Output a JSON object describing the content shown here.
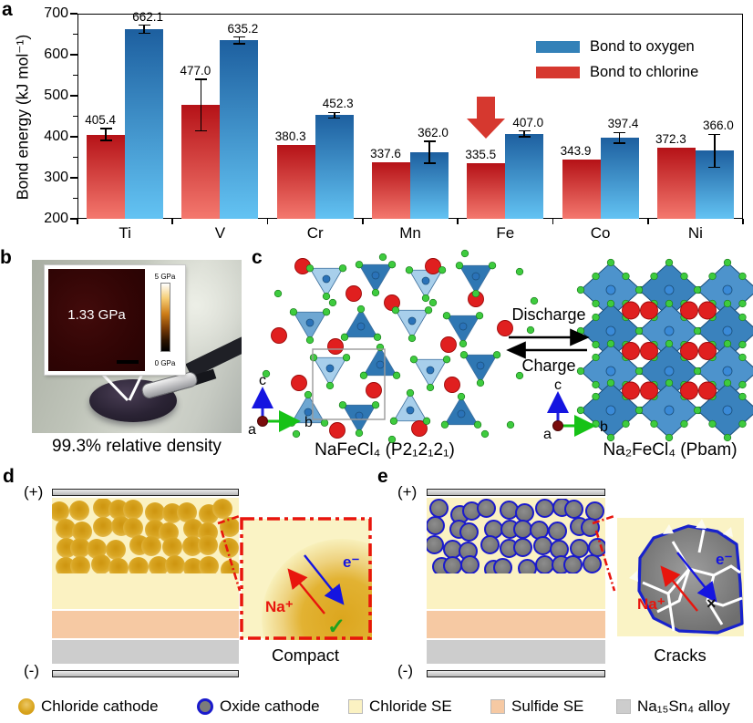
{
  "figure": {
    "panel_a_label": "a",
    "panel_b_label": "b",
    "panel_c_label": "c",
    "panel_d_label": "d",
    "panel_e_label": "e"
  },
  "chart_data": {
    "type": "bar",
    "title": "",
    "xlabel": "",
    "ylabel": "Bond energy (kJ mol⁻¹)",
    "ylim": [
      200,
      700
    ],
    "yticks": [
      200,
      300,
      400,
      500,
      600,
      700
    ],
    "grid": false,
    "legend_position": "top-right",
    "legend_order": [
      "Bond to oxygen",
      "Bond to chlorine"
    ],
    "categories": [
      "Ti",
      "V",
      "Cr",
      "Mn",
      "Fe",
      "Co",
      "Ni"
    ],
    "series": [
      {
        "name": "Bond to chlorine",
        "legend_color": "#d6382f",
        "gradient_top": "#b51217",
        "gradient_bottom": "#f4786e",
        "values": [
          405.4,
          477.0,
          380.3,
          337.6,
          335.5,
          343.9,
          372.3
        ],
        "errors": [
          14,
          63,
          0,
          0,
          0,
          0,
          0
        ]
      },
      {
        "name": "Bond to oxygen",
        "legend_color": "#3381b8",
        "gradient_top": "#1d5f9f",
        "gradient_bottom": "#63c3f3",
        "values": [
          662.1,
          635.2,
          452.3,
          362.0,
          407.0,
          397.4,
          366.0
        ],
        "errors": [
          10,
          8,
          7,
          27,
          7,
          13,
          40
        ]
      }
    ],
    "annotation": {
      "type": "down-arrow",
      "category": "Fe",
      "series": "Bond to chlorine",
      "color": "#d6382f"
    }
  },
  "panel_b": {
    "inset_pressure": "1.33 GPa",
    "scale_max": "5 GPa",
    "scale_min": "0 GPa",
    "caption": "99.3% relative density"
  },
  "panel_c": {
    "left_formula": "NaFeCl₄ (P2₁2₁2₁)",
    "right_formula": "Na₂FeCl₄ (Pbam)",
    "forward_label": "Discharge",
    "reverse_label": "Charge",
    "axis_a": "a",
    "axis_b": "b",
    "axis_c": "c"
  },
  "panel_d": {
    "electrode_plus": "(+)",
    "electrode_minus": "(-)",
    "ion_label": "Na⁺",
    "electron_label": "e⁻",
    "status_mark": "✓",
    "caption": "Compact"
  },
  "panel_e": {
    "electrode_plus": "(+)",
    "electrode_minus": "(-)",
    "ion_label": "Na⁺",
    "electron_label": "e⁻",
    "status_mark": "×",
    "caption": "Cracks"
  },
  "legend": {
    "items": [
      {
        "label": "Chloride cathode",
        "icon": "gold-sphere"
      },
      {
        "label": "Oxide cathode",
        "icon": "gray-sphere-blue-ring"
      },
      {
        "label": "Chloride SE",
        "icon": "pale-yellow-square",
        "color": "#fbf2c2"
      },
      {
        "label": "Sulfide SE",
        "icon": "peach-square",
        "color": "#f6c9a3"
      },
      {
        "label": "Na₁₅Sn₄ alloy",
        "icon": "gray-square",
        "color": "#cdcdcd"
      }
    ]
  }
}
